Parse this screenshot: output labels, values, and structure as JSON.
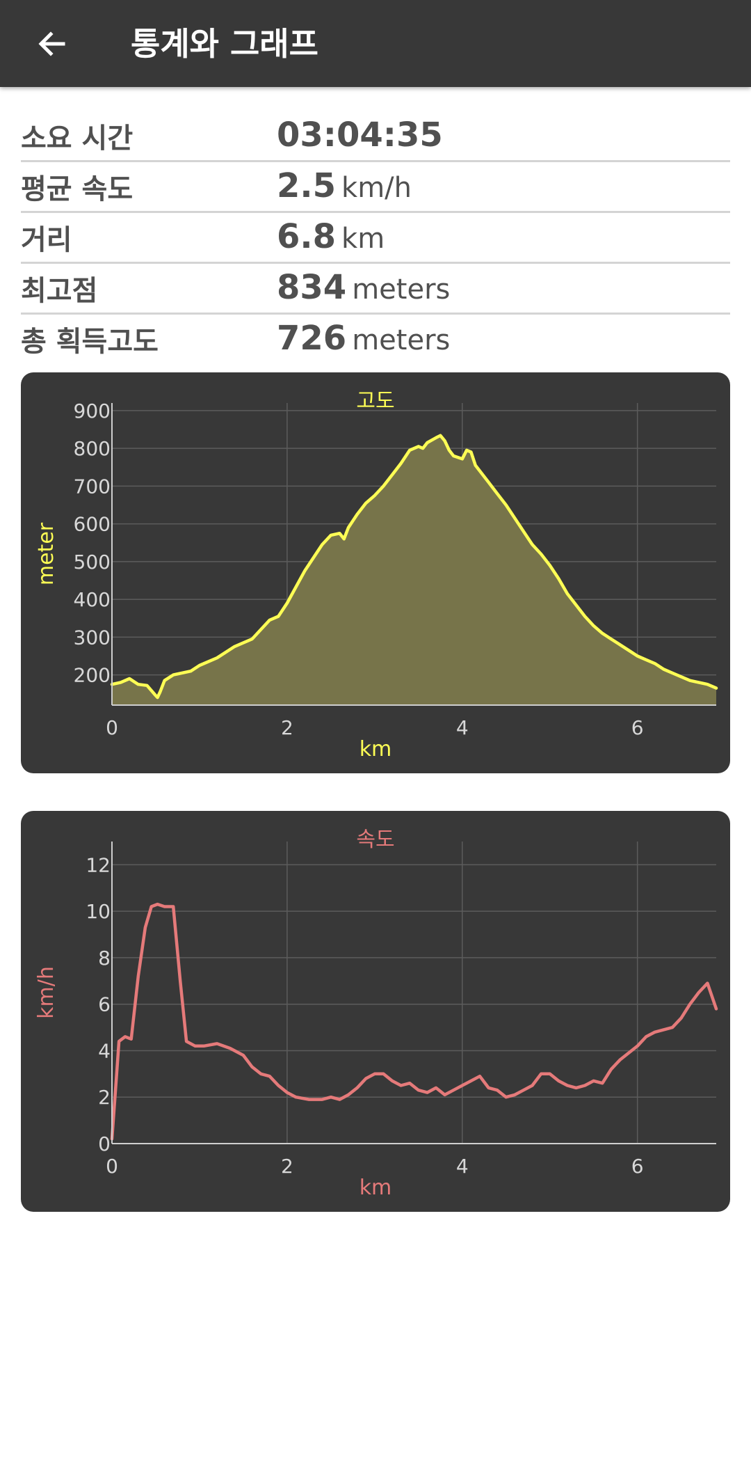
{
  "appbar": {
    "title": "통계와 그래프",
    "back_icon": "arrow-left-icon"
  },
  "stats": [
    {
      "label": "소요 시간",
      "value": "03:04:35",
      "unit": ""
    },
    {
      "label": "평균 속도",
      "value": "2.5",
      "unit": "km/h"
    },
    {
      "label": "거리",
      "value": "6.8",
      "unit": "km"
    },
    {
      "label": "최고점",
      "value": "834",
      "unit": "meters"
    },
    {
      "label": "총 획득고도",
      "value": "726",
      "unit": "meters"
    }
  ],
  "colors": {
    "appbar": "#383838",
    "card": "#383838",
    "elevation_line": "#ffff55",
    "elevation_fill": "#77744a",
    "speed_line": "#e57a7a",
    "tick_text": "#d8d8d8",
    "grid": "#5c5c5c"
  },
  "chart_data": [
    {
      "type": "area",
      "title": "고도",
      "xlabel": "km",
      "ylabel": "meter",
      "xlim": [
        0,
        6.9
      ],
      "ylim": [
        120,
        920
      ],
      "xticks": [
        "0",
        "2",
        "4",
        "6"
      ],
      "yticks": [
        "200",
        "300",
        "400",
        "500",
        "600",
        "700",
        "800",
        "900"
      ],
      "grid": true,
      "x": [
        0,
        0.1,
        0.2,
        0.3,
        0.4,
        0.5,
        0.52,
        0.55,
        0.6,
        0.7,
        0.9,
        1.0,
        1.2,
        1.4,
        1.6,
        1.7,
        1.8,
        1.9,
        2.0,
        2.2,
        2.4,
        2.5,
        2.6,
        2.65,
        2.7,
        2.8,
        2.9,
        3.0,
        3.1,
        3.2,
        3.3,
        3.4,
        3.5,
        3.55,
        3.6,
        3.7,
        3.75,
        3.8,
        3.85,
        3.9,
        4.0,
        4.05,
        4.1,
        4.15,
        4.2,
        4.3,
        4.4,
        4.5,
        4.6,
        4.7,
        4.8,
        4.9,
        5.0,
        5.1,
        5.2,
        5.3,
        5.4,
        5.5,
        5.6,
        5.7,
        5.8,
        5.9,
        6.0,
        6.1,
        6.2,
        6.3,
        6.4,
        6.5,
        6.6,
        6.7,
        6.8,
        6.9
      ],
      "y": [
        175,
        180,
        190,
        175,
        172,
        145,
        140,
        155,
        185,
        200,
        210,
        225,
        245,
        275,
        295,
        320,
        345,
        355,
        390,
        475,
        545,
        570,
        575,
        560,
        590,
        625,
        655,
        675,
        700,
        730,
        760,
        795,
        805,
        800,
        815,
        828,
        834,
        820,
        795,
        780,
        772,
        795,
        790,
        755,
        740,
        710,
        680,
        650,
        615,
        580,
        545,
        520,
        490,
        455,
        415,
        385,
        355,
        330,
        310,
        295,
        280,
        265,
        250,
        240,
        230,
        215,
        205,
        195,
        185,
        180,
        175,
        165
      ]
    },
    {
      "type": "line",
      "title": "속도",
      "xlabel": "km",
      "ylabel": "km/h",
      "xlim": [
        0,
        6.9
      ],
      "ylim": [
        0,
        13
      ],
      "xticks": [
        "0",
        "2",
        "4",
        "6"
      ],
      "yticks": [
        "0",
        "2",
        "4",
        "6",
        "8",
        "10",
        "12"
      ],
      "grid": true,
      "x": [
        0,
        0.05,
        0.08,
        0.15,
        0.22,
        0.3,
        0.38,
        0.45,
        0.52,
        0.6,
        0.7,
        0.78,
        0.85,
        0.95,
        1.05,
        1.2,
        1.35,
        1.5,
        1.6,
        1.7,
        1.8,
        1.9,
        2.0,
        2.1,
        2.25,
        2.4,
        2.5,
        2.6,
        2.7,
        2.8,
        2.9,
        3.0,
        3.1,
        3.2,
        3.3,
        3.4,
        3.5,
        3.6,
        3.7,
        3.8,
        3.9,
        4.0,
        4.1,
        4.2,
        4.3,
        4.4,
        4.5,
        4.6,
        4.7,
        4.8,
        4.9,
        5.0,
        5.1,
        5.2,
        5.3,
        5.4,
        5.5,
        5.6,
        5.7,
        5.8,
        5.9,
        6.0,
        6.1,
        6.2,
        6.3,
        6.4,
        6.5,
        6.6,
        6.7,
        6.8,
        6.9
      ],
      "y": [
        0.2,
        2.8,
        4.4,
        4.6,
        4.5,
        7.2,
        9.3,
        10.2,
        10.3,
        10.2,
        10.2,
        7.0,
        4.4,
        4.2,
        4.2,
        4.3,
        4.1,
        3.8,
        3.3,
        3.0,
        2.9,
        2.5,
        2.2,
        2.0,
        1.9,
        1.9,
        2.0,
        1.9,
        2.1,
        2.4,
        2.8,
        3.0,
        3.0,
        2.7,
        2.5,
        2.6,
        2.3,
        2.2,
        2.4,
        2.1,
        2.3,
        2.5,
        2.7,
        2.9,
        2.4,
        2.3,
        2.0,
        2.1,
        2.3,
        2.5,
        3.0,
        3.0,
        2.7,
        2.5,
        2.4,
        2.5,
        2.7,
        2.6,
        3.2,
        3.6,
        3.9,
        4.2,
        4.6,
        4.8,
        4.9,
        5.0,
        5.4,
        6.0,
        6.5,
        6.9,
        5.8
      ]
    }
  ]
}
